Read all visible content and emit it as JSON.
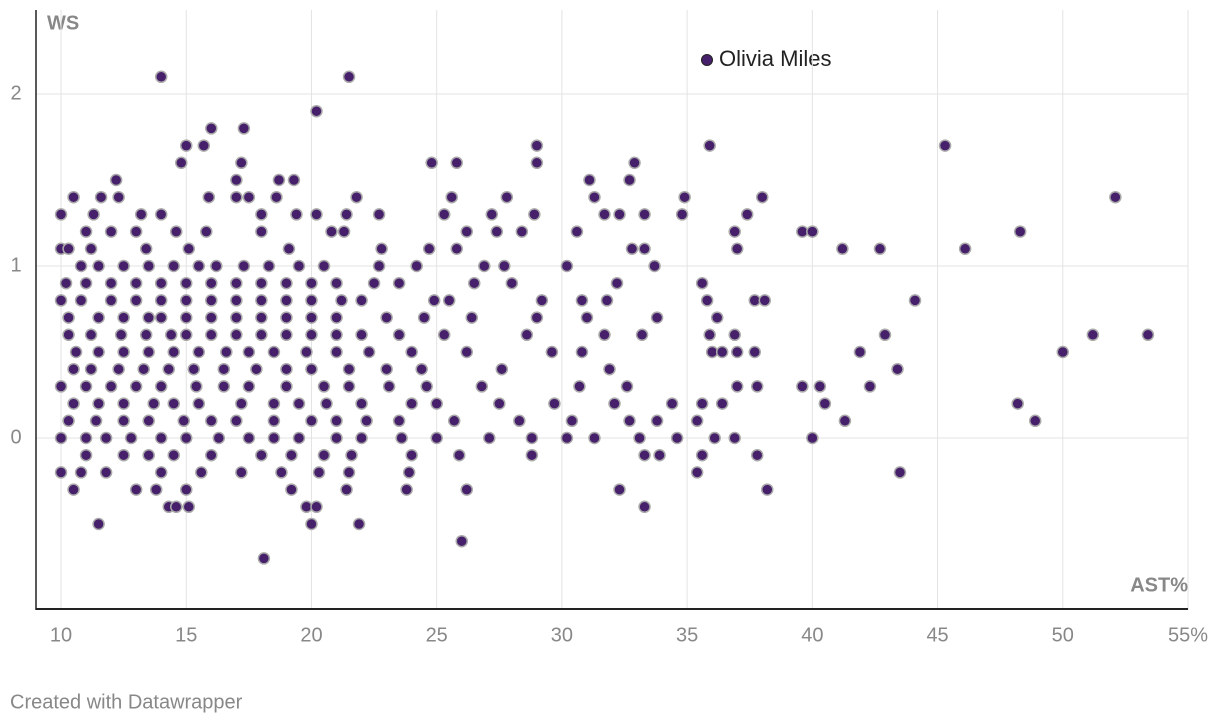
{
  "chart_data": {
    "type": "scatter",
    "x_label": "AST%",
    "y_label": "WS",
    "xlim": [
      9,
      55
    ],
    "ylim": [
      -1,
      2.5
    ],
    "xticks": [
      10,
      15,
      20,
      25,
      30,
      35,
      40,
      45,
      50,
      {
        "value": 55,
        "label": "55%"
      }
    ],
    "yticks": [
      0,
      1,
      2
    ],
    "grid": true,
    "x": [
      14,
      21.5,
      20.2,
      16,
      17.3,
      15,
      15.7,
      29,
      35.9,
      45.3,
      14.8,
      17.2,
      24.8,
      25.8,
      29,
      32.9,
      12.2,
      17,
      18.7,
      19.3,
      31.1,
      32.7,
      10.5,
      11.6,
      12.3,
      15.9,
      17,
      17.5,
      18.6,
      21.8,
      25.6,
      27.8,
      31.3,
      34.9,
      38,
      52.1,
      10,
      11.3,
      13.2,
      14,
      18,
      19.4,
      20.2,
      21.4,
      22.7,
      25.3,
      27.2,
      28.9,
      31.7,
      32.3,
      33.3,
      34.8,
      37.4,
      11,
      12,
      13,
      14.6,
      15.8,
      18,
      20.8,
      21.3,
      26.2,
      27.4,
      28.4,
      30.6,
      36.9,
      39.6,
      40,
      48.3,
      10,
      10.3,
      11.2,
      13.4,
      15.1,
      19.1,
      22.8,
      24.7,
      25.8,
      32.8,
      33.3,
      37,
      41.2,
      42.7,
      46.1,
      10.8,
      11.5,
      12.5,
      13.5,
      14.5,
      15.5,
      16.2,
      17.3,
      18.3,
      19.5,
      20.5,
      22.7,
      24.2,
      26.9,
      27.7,
      30.2,
      33.7,
      10.2,
      11,
      12,
      13,
      14,
      15,
      16,
      17,
      18,
      19,
      20,
      21,
      22.5,
      23.5,
      26.5,
      28,
      32.2,
      35.6,
      10,
      10.8,
      12,
      13,
      14,
      15,
      16,
      17,
      18,
      19,
      20,
      21.2,
      22,
      24.9,
      25.5,
      29.2,
      30.8,
      31.8,
      35.8,
      37.7,
      38.1,
      44.1,
      10.3,
      11.5,
      12.5,
      13.5,
      14,
      15,
      16,
      17,
      18,
      19,
      20,
      21,
      23,
      24.5,
      26.4,
      29,
      31,
      33.8,
      36.2,
      10.3,
      11.2,
      12.4,
      13.4,
      14.4,
      15,
      16,
      17,
      18,
      19,
      20,
      21,
      22,
      23.5,
      25.3,
      28.6,
      31.7,
      33.2,
      35.9,
      36.9,
      42.9,
      51.2,
      53.4,
      10.6,
      11.5,
      12.5,
      13.5,
      14.5,
      15.5,
      16.6,
      17.5,
      18.5,
      19.8,
      21,
      22.3,
      24,
      26.2,
      29.6,
      30.8,
      36,
      36.4,
      37,
      37.7,
      41.9,
      50,
      10.5,
      11.2,
      12.3,
      13.3,
      14.3,
      15.3,
      16.5,
      17.8,
      19,
      20,
      21.5,
      23,
      24.4,
      27.6,
      31.9,
      43.4,
      10,
      11,
      12,
      13,
      14,
      15.4,
      16.5,
      17.5,
      19,
      20.5,
      21.5,
      23.1,
      24.6,
      26.8,
      30.7,
      32.6,
      37,
      37.8,
      39.6,
      40.3,
      42.3,
      10.5,
      11.5,
      12.5,
      13.7,
      14.5,
      15.5,
      17.2,
      18.5,
      19.5,
      20.6,
      22,
      24,
      25,
      27.5,
      29.7,
      32.1,
      34.4,
      35.6,
      36.4,
      40.5,
      48.2,
      10.3,
      11.4,
      12.5,
      13.5,
      14.9,
      16,
      17,
      18.5,
      20,
      21,
      22.2,
      23.5,
      25.7,
      28.3,
      30.4,
      32.7,
      33.8,
      35.4,
      41.3,
      48.9,
      10,
      11,
      11.8,
      12.8,
      14,
      15,
      16.3,
      17.5,
      18.5,
      19.5,
      21,
      22,
      23.6,
      25,
      27.1,
      28.8,
      30.2,
      31.3,
      33.1,
      34.6,
      36.1,
      36.9,
      40,
      11,
      12.5,
      13.5,
      14.5,
      16,
      18,
      19.2,
      20.5,
      21.6,
      24,
      25.9,
      28.8,
      33.3,
      33.9,
      35.6,
      37.8,
      10,
      10.8,
      11.8,
      14,
      15.6,
      17.2,
      18.8,
      20.3,
      21.5,
      23.9,
      35.4,
      43.5,
      10.5,
      13,
      13.8,
      15,
      19.2,
      21.4,
      23.8,
      26.2,
      32.3,
      38.2,
      14.3,
      14.6,
      15.1,
      19.8,
      20.2,
      33.3,
      11.5,
      20,
      21.9,
      26,
      18.1
    ],
    "series": [
      {
        "name": "Olivia Miles",
        "color": "#47206b",
        "values": [
          2.1,
          2.1,
          1.9,
          1.8,
          1.8,
          1.7,
          1.7,
          1.7,
          1.7,
          1.7,
          1.6,
          1.6,
          1.6,
          1.6,
          1.6,
          1.6,
          1.5,
          1.5,
          1.5,
          1.5,
          1.5,
          1.5,
          1.4,
          1.4,
          1.4,
          1.4,
          1.4,
          1.4,
          1.4,
          1.4,
          1.4,
          1.4,
          1.4,
          1.4,
          1.4,
          1.4,
          1.3,
          1.3,
          1.3,
          1.3,
          1.3,
          1.3,
          1.3,
          1.3,
          1.3,
          1.3,
          1.3,
          1.3,
          1.3,
          1.3,
          1.3,
          1.3,
          1.3,
          1.2,
          1.2,
          1.2,
          1.2,
          1.2,
          1.2,
          1.2,
          1.2,
          1.2,
          1.2,
          1.2,
          1.2,
          1.2,
          1.2,
          1.2,
          1.2,
          1.1,
          1.1,
          1.1,
          1.1,
          1.1,
          1.1,
          1.1,
          1.1,
          1.1,
          1.1,
          1.1,
          1.1,
          1.1,
          1.1,
          1.1,
          1,
          1,
          1,
          1,
          1,
          1,
          1,
          1,
          1,
          1,
          1,
          1,
          1,
          1,
          1,
          1,
          1,
          0.9,
          0.9,
          0.9,
          0.9,
          0.9,
          0.9,
          0.9,
          0.9,
          0.9,
          0.9,
          0.9,
          0.9,
          0.9,
          0.9,
          0.9,
          0.9,
          0.9,
          0.9,
          0.8,
          0.8,
          0.8,
          0.8,
          0.8,
          0.8,
          0.8,
          0.8,
          0.8,
          0.8,
          0.8,
          0.8,
          0.8,
          0.8,
          0.8,
          0.8,
          0.8,
          0.8,
          0.8,
          0.8,
          0.8,
          0.8,
          0.7,
          0.7,
          0.7,
          0.7,
          0.7,
          0.7,
          0.7,
          0.7,
          0.7,
          0.7,
          0.7,
          0.7,
          0.7,
          0.7,
          0.7,
          0.7,
          0.7,
          0.7,
          0.7,
          0.6,
          0.6,
          0.6,
          0.6,
          0.6,
          0.6,
          0.6,
          0.6,
          0.6,
          0.6,
          0.6,
          0.6,
          0.6,
          0.6,
          0.6,
          0.6,
          0.6,
          0.6,
          0.6,
          0.6,
          0.6,
          0.6,
          0.6,
          0.5,
          0.5,
          0.5,
          0.5,
          0.5,
          0.5,
          0.5,
          0.5,
          0.5,
          0.5,
          0.5,
          0.5,
          0.5,
          0.5,
          0.5,
          0.5,
          0.5,
          0.5,
          0.5,
          0.5,
          0.5,
          0.5,
          0.4,
          0.4,
          0.4,
          0.4,
          0.4,
          0.4,
          0.4,
          0.4,
          0.4,
          0.4,
          0.4,
          0.4,
          0.4,
          0.4,
          0.4,
          0.4,
          0.3,
          0.3,
          0.3,
          0.3,
          0.3,
          0.3,
          0.3,
          0.3,
          0.3,
          0.3,
          0.3,
          0.3,
          0.3,
          0.3,
          0.3,
          0.3,
          0.3,
          0.3,
          0.3,
          0.3,
          0.3,
          0.2,
          0.2,
          0.2,
          0.2,
          0.2,
          0.2,
          0.2,
          0.2,
          0.2,
          0.2,
          0.2,
          0.2,
          0.2,
          0.2,
          0.2,
          0.2,
          0.2,
          0.2,
          0.2,
          0.2,
          0.2,
          0.1,
          0.1,
          0.1,
          0.1,
          0.1,
          0.1,
          0.1,
          0.1,
          0.1,
          0.1,
          0.1,
          0.1,
          0.1,
          0.1,
          0.1,
          0.1,
          0.1,
          0.1,
          0.1,
          0.1,
          0,
          0,
          0,
          0,
          0,
          0,
          0,
          0,
          0,
          0,
          0,
          0,
          0,
          0,
          0,
          0,
          0,
          0,
          0,
          0,
          0,
          0,
          0,
          -0.1,
          -0.1,
          -0.1,
          -0.1,
          -0.1,
          -0.1,
          -0.1,
          -0.1,
          -0.1,
          -0.1,
          -0.1,
          -0.1,
          -0.1,
          -0.1,
          -0.1,
          -0.1,
          -0.2,
          -0.2,
          -0.2,
          -0.2,
          -0.2,
          -0.2,
          -0.2,
          -0.2,
          -0.2,
          -0.2,
          -0.2,
          -0.2,
          -0.3,
          -0.3,
          -0.3,
          -0.3,
          -0.3,
          -0.3,
          -0.3,
          -0.3,
          -0.3,
          -0.3,
          -0.4,
          -0.4,
          -0.4,
          -0.4,
          -0.4,
          -0.4,
          -0.5,
          -0.5,
          -0.5,
          -0.6,
          -0.7
        ]
      }
    ]
  },
  "credit": "Created with Datawrapper"
}
